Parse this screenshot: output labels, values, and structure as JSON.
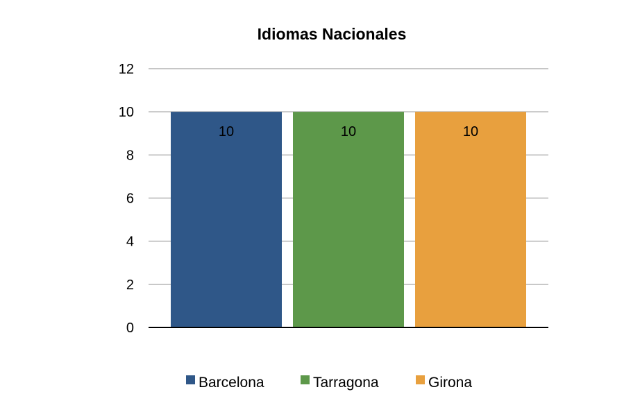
{
  "chart_data": {
    "type": "bar",
    "title": "Idiomas Nacionales",
    "xlabel": "",
    "ylabel": "",
    "ylim": [
      0,
      12
    ],
    "yticks": [
      0,
      2,
      4,
      6,
      8,
      10,
      12
    ],
    "grid": true,
    "legend_position": "bottom",
    "data_labels": true,
    "series": [
      {
        "name": "Barcelona",
        "values": [
          10
        ],
        "color": "#2f5788"
      },
      {
        "name": "Tarragona",
        "values": [
          10
        ],
        "color": "#5d984a"
      },
      {
        "name": "Girona",
        "values": [
          10
        ],
        "color": "#e8a03e"
      }
    ]
  }
}
